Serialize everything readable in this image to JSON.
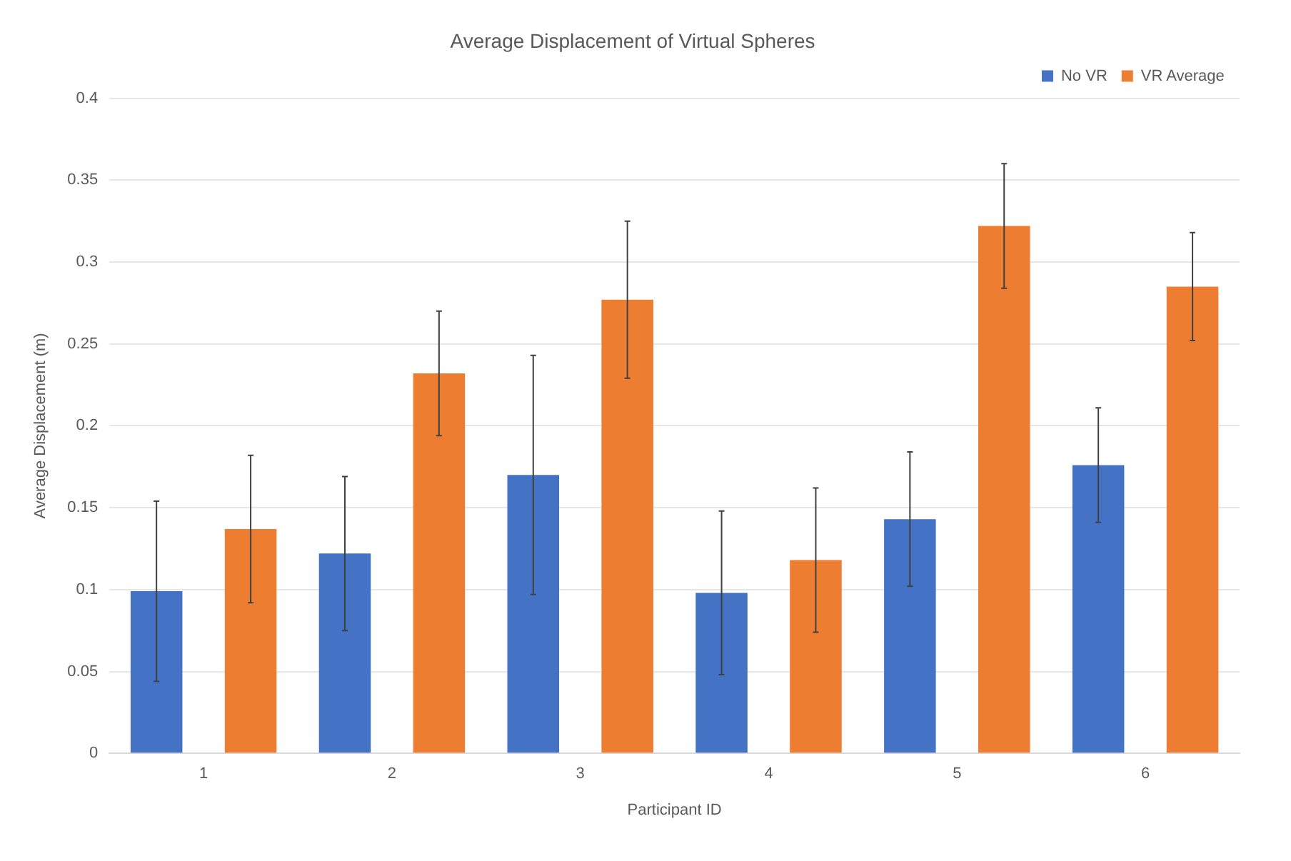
{
  "chart_data": {
    "type": "bar",
    "title": "Average Displacement of Virtual Spheres",
    "xlabel": "Participant ID",
    "ylabel": "Average Displacement (m)",
    "categories": [
      "1",
      "2",
      "3",
      "4",
      "5",
      "6"
    ],
    "series": [
      {
        "name": "No VR",
        "color": "#4472c4",
        "values": [
          0.099,
          0.122,
          0.17,
          0.098,
          0.143,
          0.176
        ],
        "errors": [
          0.055,
          0.047,
          0.073,
          0.05,
          0.041,
          0.035
        ]
      },
      {
        "name": "VR Average",
        "color": "#ed7d31",
        "values": [
          0.137,
          0.232,
          0.277,
          0.118,
          0.322,
          0.285
        ],
        "errors": [
          0.045,
          0.038,
          0.048,
          0.044,
          0.038,
          0.033
        ]
      }
    ],
    "ylim": [
      0,
      0.4
    ],
    "yticks": [
      0,
      0.05,
      0.1,
      0.15,
      0.2,
      0.25,
      0.3,
      0.35,
      0.4
    ],
    "grid": "y",
    "legend": "top right"
  }
}
